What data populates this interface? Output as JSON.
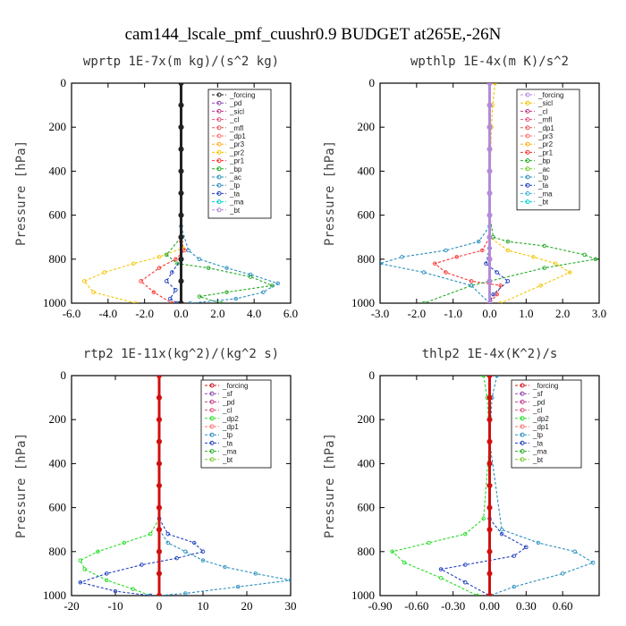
{
  "figure": {
    "title": "cam144_lscale_pmf_cuushr0.9  BUDGET at265E,-26N"
  },
  "chart_data": [
    {
      "type": "line",
      "title": "wprtp  1E-7x(m kg)/(s^2 kg)",
      "ylabel": "Pressure [hPa]",
      "xlim": [
        -6,
        6
      ],
      "ylim": [
        0,
        1000
      ],
      "y_inverted": true,
      "xticks": [
        "-6.0",
        "-4.0",
        "-2.0",
        "0.0",
        "2.0",
        "4.0",
        "6.0"
      ],
      "yticks": [
        "0",
        "200",
        "400",
        "600",
        "800",
        "1000"
      ],
      "legend_position": "top-right",
      "legend": [
        "_forcing",
        "_pd",
        "_sicl",
        "_cl",
        "_mfl",
        "_dp1",
        "_pr3",
        "_pr2",
        "_pr1",
        "_bp",
        "_ac",
        "_tp",
        "_ta",
        "_ma",
        "_bt"
      ],
      "series": [
        {
          "name": "_forcing",
          "color": "#222222",
          "x": [
            0,
            0,
            0,
            0,
            0,
            0,
            0,
            0,
            0,
            0,
            0
          ],
          "y": [
            0,
            100,
            200,
            300,
            400,
            500,
            600,
            700,
            800,
            900,
            1000
          ]
        },
        {
          "name": "_pr2",
          "color": "#f5c400",
          "x": [
            0,
            0,
            0.1,
            -1.2,
            -2.6,
            -4.2,
            -5.3,
            -4.8,
            -2.5
          ],
          "y": [
            600,
            700,
            750,
            790,
            820,
            860,
            900,
            950,
            1000
          ]
        },
        {
          "name": "_pr1",
          "color": "#ff3030",
          "x": [
            0,
            0,
            0.2,
            -0.3,
            -1.2,
            -2.2,
            -1.5,
            -0.5
          ],
          "y": [
            650,
            720,
            760,
            800,
            840,
            900,
            950,
            1000
          ]
        },
        {
          "name": "_bp",
          "color": "#22aa22",
          "x": [
            0,
            0,
            -0.8,
            -0.2,
            1.5,
            3.8,
            5.0,
            2.5,
            1.0,
            2.2
          ],
          "y": [
            600,
            700,
            780,
            820,
            840,
            880,
            920,
            950,
            970,
            1000
          ]
        },
        {
          "name": "_tp",
          "color": "#2a8fbf",
          "x": [
            0,
            0.4,
            1.0,
            2.5,
            3.8,
            5.3,
            4.5,
            3.0,
            0.5
          ],
          "y": [
            650,
            760,
            800,
            840,
            870,
            910,
            950,
            980,
            1000
          ]
        },
        {
          "name": "_ta",
          "color": "#1f3fbf",
          "x": [
            0,
            0,
            -0.5,
            -0.8,
            -0.3,
            -0.6,
            -0.2
          ],
          "y": [
            700,
            800,
            860,
            900,
            940,
            980,
            1000
          ]
        }
      ]
    },
    {
      "type": "line",
      "title": "wpthlp  1E-4x(m K)/s^2",
      "ylabel": "Pressure [hPa]",
      "xlim": [
        -3,
        3
      ],
      "ylim": [
        0,
        1000
      ],
      "y_inverted": true,
      "xticks": [
        "-3.0",
        "-2.0",
        "-1.0",
        "0.0",
        "1.0",
        "2.0",
        "3.0"
      ],
      "yticks": [
        "0",
        "200",
        "400",
        "600",
        "800",
        "1000"
      ],
      "legend_position": "top-right",
      "legend": [
        "_forcing",
        "_sicl",
        "_cl",
        "_mfl",
        "_dp1",
        "_pr3",
        "_pr2",
        "_pr1",
        "_bp",
        "_ac",
        "_tp",
        "_ta",
        "_ma",
        "_bt"
      ],
      "series": [
        {
          "name": "_forcing",
          "color": "#b58ad8",
          "x": [
            0,
            0,
            0,
            0,
            0,
            0,
            0,
            0,
            0,
            0,
            0
          ],
          "y": [
            0,
            100,
            200,
            300,
            400,
            500,
            600,
            700,
            800,
            900,
            1000
          ]
        },
        {
          "name": "_sicl",
          "color": "#f5c400",
          "x": [
            0.15,
            0.08,
            0.05,
            0.02,
            0,
            0.5,
            1.2,
            1.8,
            2.2,
            1.4,
            0.3
          ],
          "y": [
            0,
            100,
            200,
            400,
            700,
            760,
            790,
            820,
            860,
            920,
            1000
          ]
        },
        {
          "name": "_pr1",
          "color": "#ff3030",
          "x": [
            0,
            -0.2,
            -0.9,
            -1.5,
            -1.2,
            -0.5,
            0.3,
            0.2,
            0
          ],
          "y": [
            700,
            760,
            790,
            820,
            860,
            900,
            920,
            960,
            1000
          ]
        },
        {
          "name": "_bp",
          "color": "#22aa22",
          "x": [
            0,
            0.1,
            0.5,
            1.5,
            2.6,
            2.9,
            1.5,
            -0.5,
            -1.8
          ],
          "y": [
            600,
            700,
            720,
            740,
            780,
            800,
            840,
            920,
            1000
          ]
        },
        {
          "name": "_tp",
          "color": "#2a8fbf",
          "x": [
            0,
            -0.3,
            -1.2,
            -2.4,
            -3.0,
            -1.8,
            -0.5,
            0
          ],
          "y": [
            650,
            720,
            760,
            790,
            820,
            860,
            920,
            1000
          ]
        },
        {
          "name": "_ta",
          "color": "#1f3fbf",
          "x": [
            0,
            -0.1,
            0.2,
            0.5,
            0.1,
            0
          ],
          "y": [
            750,
            820,
            860,
            900,
            960,
            1000
          ]
        }
      ]
    },
    {
      "type": "line",
      "title": "rtp2  1E-11x(kg^2)/(kg^2 s)",
      "ylabel": "Pressure [hPa]",
      "xlim": [
        -20,
        30
      ],
      "ylim": [
        0,
        1000
      ],
      "y_inverted": true,
      "xticks": [
        "-20",
        "-10",
        "0",
        "10",
        "20",
        "30"
      ],
      "yticks": [
        "0",
        "200",
        "400",
        "600",
        "800",
        "1000"
      ],
      "legend_position": "top-right",
      "legend": [
        "_forcing",
        "_sf",
        "_pd",
        "_cl",
        "_dp2",
        "_dp1",
        "_tp",
        "_ta",
        "_ma",
        "_bt"
      ],
      "series": [
        {
          "name": "_forcing",
          "color": "#d01010",
          "x": [
            0,
            0,
            0,
            0,
            0,
            0,
            0,
            0,
            0,
            0,
            0
          ],
          "y": [
            0,
            100,
            200,
            300,
            400,
            500,
            600,
            700,
            800,
            900,
            1000
          ]
        },
        {
          "name": "_dp2",
          "color": "#22dd22",
          "x": [
            0,
            -2,
            -8,
            -14,
            -18,
            -17,
            -12,
            -6,
            -2
          ],
          "y": [
            650,
            720,
            760,
            800,
            840,
            880,
            930,
            970,
            1000
          ]
        },
        {
          "name": "_tp",
          "color": "#2a8fbf",
          "x": [
            0,
            2,
            6,
            10,
            15,
            22,
            30,
            18,
            6,
            0
          ],
          "y": [
            700,
            760,
            800,
            840,
            870,
            900,
            930,
            960,
            990,
            1000
          ]
        },
        {
          "name": "_ta",
          "color": "#1f3fbf",
          "x": [
            0,
            2,
            8,
            10,
            4,
            -4,
            -12,
            -18,
            -10,
            -2
          ],
          "y": [
            650,
            720,
            760,
            800,
            830,
            860,
            900,
            940,
            980,
            1000
          ]
        }
      ]
    },
    {
      "type": "line",
      "title": "thlp2  1E-4x(K^2)/s",
      "ylabel": "Pressure [hPa]",
      "xlim": [
        -0.9,
        0.9
      ],
      "ylim": [
        0,
        1000
      ],
      "y_inverted": true,
      "xticks": [
        "-0.90",
        "-0.60",
        "-0.30",
        "0.00",
        "0.30",
        "0.60"
      ],
      "yticks": [
        "0",
        "200",
        "400",
        "600",
        "800",
        "1000"
      ],
      "legend_position": "top-right",
      "legend": [
        "_forcing",
        "_sf",
        "_pd",
        "_cl",
        "_dp2",
        "_dp1",
        "_tp",
        "_ta",
        "_ma",
        "_bt"
      ],
      "series": [
        {
          "name": "_forcing",
          "color": "#d01010",
          "x": [
            0,
            0,
            0,
            0,
            0,
            0,
            0,
            0,
            0,
            0,
            0
          ],
          "y": [
            0,
            100,
            200,
            300,
            400,
            500,
            600,
            700,
            800,
            900,
            1000
          ]
        },
        {
          "name": "_dp2",
          "color": "#22dd22",
          "x": [
            -0.05,
            -0.02,
            0,
            -0.05,
            -0.2,
            -0.5,
            -0.8,
            -0.7,
            -0.4,
            -0.1
          ],
          "y": [
            0,
            100,
            300,
            650,
            720,
            760,
            800,
            850,
            920,
            1000
          ]
        },
        {
          "name": "_tp",
          "color": "#2a8fbf",
          "x": [
            0.06,
            0.02,
            0,
            0.1,
            0.4,
            0.7,
            0.85,
            0.6,
            0.2,
            0
          ],
          "y": [
            0,
            100,
            300,
            700,
            760,
            800,
            850,
            900,
            960,
            1000
          ]
        },
        {
          "name": "_ta",
          "color": "#1f3fbf",
          "x": [
            0,
            0.1,
            0.3,
            0.2,
            -0.2,
            -0.4,
            -0.2,
            0
          ],
          "y": [
            650,
            720,
            780,
            820,
            860,
            880,
            940,
            1000
          ]
        }
      ]
    }
  ]
}
